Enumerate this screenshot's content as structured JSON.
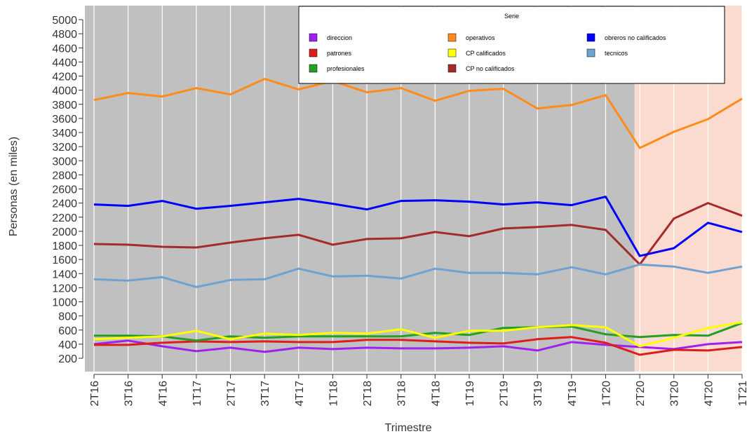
{
  "chart_data": {
    "type": "line",
    "xlabel": "Trimestre",
    "ylabel": "Personas (en miles)",
    "ylim": [
      200,
      5000
    ],
    "yticks": [
      200,
      400,
      600,
      800,
      1000,
      1200,
      1400,
      1600,
      1800,
      2000,
      2200,
      2400,
      2600,
      2800,
      3000,
      3200,
      3400,
      3600,
      3800,
      4000,
      4200,
      4400,
      4600,
      4800,
      5000
    ],
    "categories": [
      "2T16",
      "3T16",
      "4T16",
      "1T17",
      "2T17",
      "3T17",
      "4T17",
      "1T18",
      "2T18",
      "3T18",
      "4T18",
      "1T19",
      "2T19",
      "3T19",
      "4T19",
      "1T20",
      "2T20",
      "3T20",
      "4T20",
      "1T21"
    ],
    "grid": true,
    "shaded_regions": [
      {
        "from": "2T16",
        "to": "1T20",
        "color": "#c0c0c0"
      },
      {
        "from": "2T20",
        "to": "1T21",
        "color": "#fbdbd0"
      }
    ],
    "legend": {
      "title": "Serie",
      "position": "top-right"
    },
    "series": [
      {
        "name": "direccion",
        "color": "#a020f0",
        "values": [
          400,
          450,
          370,
          300,
          350,
          290,
          350,
          330,
          350,
          340,
          340,
          350,
          370,
          310,
          430,
          390,
          360,
          330,
          400,
          430
        ]
      },
      {
        "name": "patrones",
        "color": "#dd1c1c",
        "values": [
          390,
          390,
          420,
          440,
          430,
          440,
          430,
          430,
          460,
          460,
          440,
          420,
          410,
          470,
          500,
          420,
          250,
          320,
          310,
          360
        ]
      },
      {
        "name": "profesionales",
        "color": "#22a022",
        "values": [
          520,
          520,
          510,
          450,
          510,
          490,
          510,
          510,
          510,
          510,
          560,
          530,
          630,
          640,
          650,
          540,
          500,
          530,
          520,
          700
        ]
      },
      {
        "name": "operativos",
        "color": "#ff8c1a",
        "values": [
          3860,
          3960,
          3910,
          4030,
          3940,
          4160,
          4010,
          4130,
          3970,
          4030,
          3850,
          3990,
          4020,
          3740,
          3790,
          3930,
          3180,
          3410,
          3590,
          3880
        ]
      },
      {
        "name": "CP calificados",
        "color": "#ffff00",
        "values": [
          470,
          490,
          510,
          590,
          470,
          550,
          530,
          560,
          550,
          610,
          490,
          590,
          590,
          640,
          670,
          640,
          370,
          490,
          630,
          710
        ]
      },
      {
        "name": "CP no calificados",
        "color": "#a52a2a",
        "values": [
          1820,
          1810,
          1780,
          1770,
          1840,
          1900,
          1950,
          1810,
          1890,
          1900,
          1990,
          1930,
          2040,
          2060,
          2090,
          2020,
          1530,
          2180,
          2400,
          2220
        ]
      },
      {
        "name": "obreros no calificados",
        "color": "#0000ff",
        "values": [
          2380,
          2360,
          2430,
          2320,
          2360,
          2410,
          2460,
          2390,
          2310,
          2430,
          2440,
          2420,
          2380,
          2410,
          2370,
          2490,
          1650,
          1760,
          2120,
          1990
        ]
      },
      {
        "name": "tecnicos",
        "color": "#6fa1d2",
        "values": [
          1320,
          1300,
          1350,
          1210,
          1310,
          1320,
          1470,
          1360,
          1370,
          1330,
          1470,
          1410,
          1410,
          1390,
          1490,
          1390,
          1530,
          1500,
          1410,
          1500
        ]
      }
    ]
  }
}
